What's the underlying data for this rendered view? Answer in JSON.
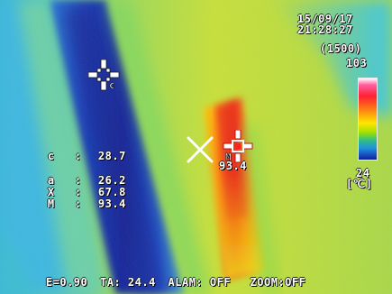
{
  "header": {
    "date": "15/09/17",
    "time": "21:28:27"
  },
  "scale": {
    "range": "(1500)",
    "max": "103",
    "min": "24",
    "unit": "[℃]",
    "colors": [
      "#ffffff",
      "#ff2030",
      "#ff8a10",
      "#ffe600",
      "#a6e000",
      "#2090e0",
      "#1020a0"
    ]
  },
  "measurements": {
    "c": {
      "key": "c",
      "sep": ":",
      "value": "28.7"
    },
    "a": {
      "key": "a",
      "sep": ":",
      "value": "26.2"
    },
    "x": {
      "key": "X",
      "sep": ":",
      "value": "67.8"
    },
    "m": {
      "key": "M",
      "sep": ":",
      "value": "93.4"
    }
  },
  "markers": {
    "c_label": "c",
    "m_label": "M",
    "m_value": "93.4"
  },
  "footer": {
    "emissivity": "E=0.90",
    "ambient": "TA: 24.4",
    "alarm": "ALAM: OFF",
    "zoom": "ZOOM:OFF"
  }
}
